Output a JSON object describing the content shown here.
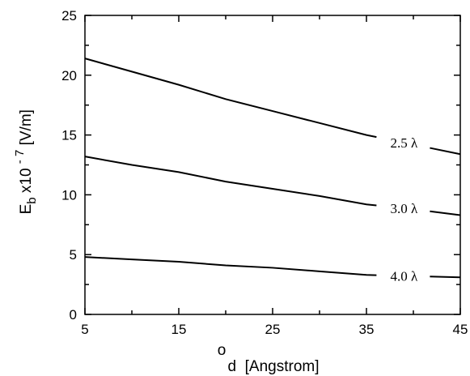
{
  "chart_data": {
    "type": "line",
    "x_ticks": [
      "5",
      "15",
      "25",
      "35",
      "45"
    ],
    "y_ticks": [
      "0",
      "5",
      "10",
      "15",
      "20",
      "25"
    ],
    "xlim": [
      5,
      45
    ],
    "ylim": [
      0,
      25
    ],
    "xlabel": "d  [Angstrom]",
    "xlabel_accent": "o",
    "ylabel": {
      "main": "E",
      "sub": "b",
      "mid": "x10",
      "sup": "- 7",
      "units": "[V/m]"
    },
    "grid": false,
    "legend": "none",
    "series": [
      {
        "name": "2.5 λ",
        "x": [
          5,
          10,
          15,
          20,
          25,
          30,
          35,
          40,
          45
        ],
        "y": [
          21.4,
          20.3,
          19.2,
          18.0,
          17.0,
          16.0,
          15.0,
          14.2,
          13.4
        ]
      },
      {
        "name": "3.0 λ",
        "x": [
          5,
          10,
          15,
          20,
          25,
          30,
          35,
          40,
          45
        ],
        "y": [
          13.2,
          12.5,
          11.9,
          11.1,
          10.5,
          9.9,
          9.2,
          8.8,
          8.3
        ]
      },
      {
        "name": "4.0 λ",
        "x": [
          5,
          10,
          15,
          20,
          25,
          30,
          35,
          40,
          45
        ],
        "y": [
          4.8,
          4.6,
          4.4,
          4.1,
          3.9,
          3.6,
          3.3,
          3.2,
          3.1
        ]
      }
    ]
  }
}
